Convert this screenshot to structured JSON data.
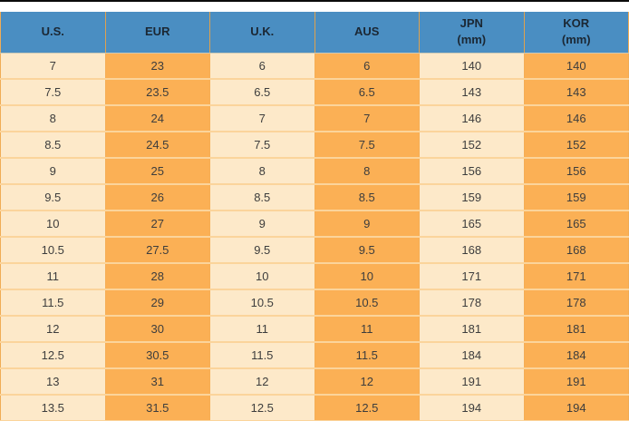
{
  "colors": {
    "top_bar": "#0b0b0b",
    "header_bg": "#4a8ec2",
    "header_text": "#1b2733",
    "cell_light_bg": "#fde9c9",
    "cell_orange_bg": "#fbb055",
    "row_separator": "#fbd49b",
    "column_border": "#f5ae55",
    "cell_text": "#3d3d3d"
  },
  "table": {
    "headers": [
      {
        "label": "U.S."
      },
      {
        "label": "EUR"
      },
      {
        "label": "U.K."
      },
      {
        "label": "AUS"
      },
      {
        "label": "JPN",
        "sub": "(mm)"
      },
      {
        "label": "KOR",
        "sub": "(mm)"
      }
    ]
  },
  "chart_data": {
    "type": "table",
    "columns": [
      "U.S.",
      "EUR",
      "U.K.",
      "AUS",
      "JPN (mm)",
      "KOR (mm)"
    ],
    "rows": [
      [
        "7",
        "23",
        "6",
        "6",
        "140",
        "140"
      ],
      [
        "7.5",
        "23.5",
        "6.5",
        "6.5",
        "143",
        "143"
      ],
      [
        "8",
        "24",
        "7",
        "7",
        "146",
        "146"
      ],
      [
        "8.5",
        "24.5",
        "7.5",
        "7.5",
        "152",
        "152"
      ],
      [
        "9",
        "25",
        "8",
        "8",
        "156",
        "156"
      ],
      [
        "9.5",
        "26",
        "8.5",
        "8.5",
        "159",
        "159"
      ],
      [
        "10",
        "27",
        "9",
        "9",
        "165",
        "165"
      ],
      [
        "10.5",
        "27.5",
        "9.5",
        "9.5",
        "168",
        "168"
      ],
      [
        "11",
        "28",
        "10",
        "10",
        "171",
        "171"
      ],
      [
        "11.5",
        "29",
        "10.5",
        "10.5",
        "178",
        "178"
      ],
      [
        "12",
        "30",
        "11",
        "11",
        "181",
        "181"
      ],
      [
        "12.5",
        "30.5",
        "11.5",
        "11.5",
        "184",
        "184"
      ],
      [
        "13",
        "31",
        "12",
        "12",
        "191",
        "191"
      ],
      [
        "13.5",
        "31.5",
        "12.5",
        "12.5",
        "194",
        "194"
      ]
    ]
  }
}
